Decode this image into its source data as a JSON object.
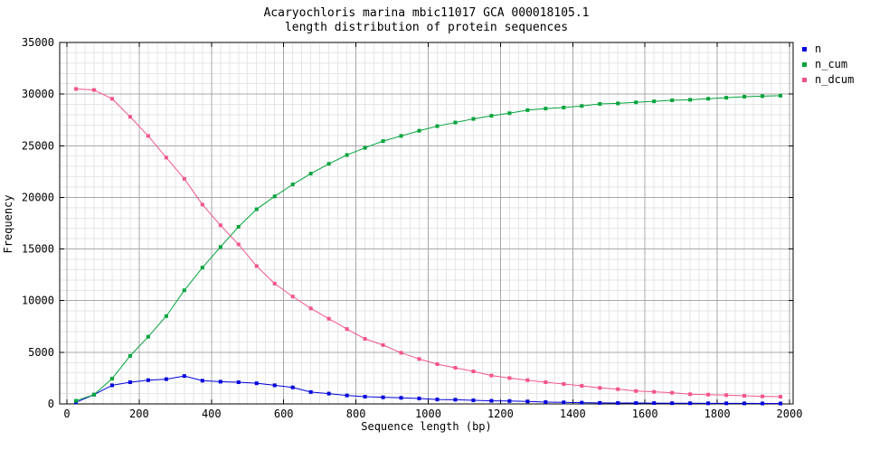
{
  "title": {
    "line1": "Acaryochloris marina mbic11017 GCA 000018105.1",
    "line2": "length distribution of protein sequences"
  },
  "axes": {
    "x_label": "Sequence length (bp)",
    "y_label": "Frequency",
    "x_ticks": [
      0,
      200,
      400,
      600,
      800,
      1000,
      1200,
      1400,
      1600,
      1800,
      2000
    ],
    "y_ticks": [
      0,
      5000,
      10000,
      15000,
      20000,
      25000,
      30000,
      35000
    ],
    "x_minor_step": 25,
    "y_minor_step": 1000,
    "grid": "major and minor, on"
  },
  "legend": {
    "position": "top-right, outside plot",
    "entries": [
      {
        "label": "n",
        "color": "#0000dd"
      },
      {
        "label": "n_cum",
        "color": "#00a33c"
      },
      {
        "label": "n_dcum",
        "color": "#f2548c"
      }
    ]
  },
  "colors": {
    "n": "#0000dd",
    "n_cum": "#00a33c",
    "n_dcum": "#f2548c",
    "grid_major": "#a8a8a8",
    "grid_minor": "#e6e6e6",
    "border": "#000000",
    "background": "#ffffff"
  },
  "chart_data": {
    "type": "line",
    "title": "Acaryochloris marina mbic11017 GCA 000018105.1 — length distribution of protein sequences",
    "xlabel": "Sequence length (bp)",
    "ylabel": "Frequency",
    "xlim": [
      -20,
      2010
    ],
    "ylim": [
      0,
      35000
    ],
    "legend_position": "top-right-outside",
    "grid": true,
    "marker": "filled-square",
    "x": [
      25,
      75,
      125,
      175,
      225,
      275,
      325,
      375,
      425,
      475,
      525,
      575,
      625,
      675,
      725,
      775,
      825,
      875,
      925,
      975,
      1025,
      1075,
      1125,
      1175,
      1225,
      1275,
      1325,
      1375,
      1425,
      1475,
      1525,
      1575,
      1625,
      1675,
      1725,
      1775,
      1825,
      1875,
      1925,
      1975
    ],
    "series": [
      {
        "name": "n",
        "color": "#0000dd",
        "values": [
          150,
          900,
          1800,
          2100,
          2300,
          2400,
          2700,
          2250,
          2150,
          2100,
          2000,
          1800,
          1600,
          1150,
          1000,
          820,
          700,
          640,
          590,
          530,
          430,
          410,
          350,
          300,
          280,
          240,
          180,
          150,
          120,
          100,
          90,
          85,
          80,
          70,
          65,
          60,
          55,
          50,
          45,
          40
        ]
      },
      {
        "name": "n_cum",
        "color": "#00a33c",
        "values": [
          300,
          900,
          2450,
          4650,
          6500,
          8500,
          11000,
          13200,
          15200,
          17150,
          18850,
          20100,
          21250,
          22300,
          23250,
          24100,
          24800,
          25450,
          25950,
          26450,
          26900,
          27250,
          27600,
          27900,
          28150,
          28450,
          28600,
          28700,
          28850,
          29050,
          29100,
          29200,
          29300,
          29400,
          29450,
          29550,
          29650,
          29750,
          29800,
          29850
        ]
      },
      {
        "name": "n_dcum",
        "color": "#f2548c",
        "values": [
          30500,
          30400,
          29550,
          27800,
          25950,
          23850,
          21800,
          19300,
          17300,
          15450,
          13350,
          11650,
          10400,
          9250,
          8250,
          7250,
          6300,
          5700,
          4950,
          4350,
          3850,
          3500,
          3150,
          2750,
          2500,
          2300,
          2100,
          1930,
          1750,
          1550,
          1430,
          1250,
          1170,
          1080,
          940,
          900,
          850,
          790,
          730,
          700
        ]
      }
    ]
  }
}
